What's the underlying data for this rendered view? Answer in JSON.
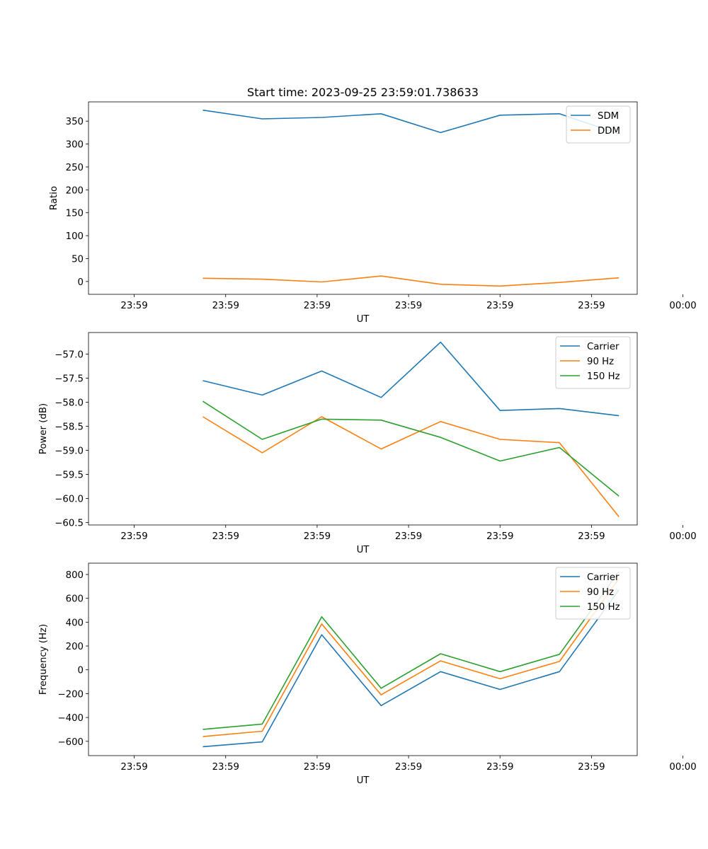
{
  "chart_data": [
    {
      "type": "line",
      "title": "Start time: 2023-09-25 23:59:01.738633",
      "xlabel": "UT",
      "ylabel": "Ratio",
      "x": [
        0.75,
        1.4,
        2.05,
        2.7,
        3.35,
        4.0,
        4.65,
        5.3
      ],
      "xlim": [
        -0.5,
        5.5
      ],
      "x_ticks": [
        0,
        1,
        2,
        3,
        4,
        5,
        6
      ],
      "x_tick_labels": [
        "23:59",
        "23:59",
        "23:59",
        "23:59",
        "23:59",
        "23:59",
        "00:00"
      ],
      "ylim": [
        -28,
        392
      ],
      "y_ticks": [
        0,
        50,
        100,
        150,
        200,
        250,
        300,
        350
      ],
      "y_tick_labels": [
        "0",
        "50",
        "100",
        "150",
        "200",
        "250",
        "300",
        "350"
      ],
      "legend": "top-right",
      "series": [
        {
          "name": "SDM",
          "color": "#1f77b4",
          "values": [
            374,
            355,
            358,
            366,
            325,
            363,
            366,
            322
          ]
        },
        {
          "name": "DDM",
          "color": "#ff7f0e",
          "values": [
            7,
            5,
            -1,
            12,
            -6,
            -10,
            -2,
            8
          ]
        }
      ]
    },
    {
      "type": "line",
      "title": "",
      "xlabel": "UT",
      "ylabel": "Power (dB)",
      "x": [
        0.75,
        1.4,
        2.05,
        2.7,
        3.35,
        4.0,
        4.65,
        5.3
      ],
      "xlim": [
        -0.5,
        5.5
      ],
      "x_ticks": [
        0,
        1,
        2,
        3,
        4,
        5,
        6
      ],
      "x_tick_labels": [
        "23:59",
        "23:59",
        "23:59",
        "23:59",
        "23:59",
        "23:59",
        "00:00"
      ],
      "ylim": [
        -60.55,
        -56.55
      ],
      "y_ticks": [
        -60.5,
        -60.0,
        -59.5,
        -59.0,
        -58.5,
        -58.0,
        -57.5,
        -57.0
      ],
      "y_tick_labels": [
        "−60.5",
        "−60.0",
        "−59.5",
        "−59.0",
        "−58.5",
        "−58.0",
        "−57.5",
        "−57.0"
      ],
      "legend": "top-right",
      "series": [
        {
          "name": "Carrier",
          "color": "#1f77b4",
          "values": [
            -57.55,
            -57.85,
            -57.35,
            -57.9,
            -56.75,
            -58.17,
            -58.13,
            -58.28
          ]
        },
        {
          "name": "90 Hz",
          "color": "#ff7f0e",
          "values": [
            -58.3,
            -59.05,
            -58.3,
            -58.97,
            -58.4,
            -58.77,
            -58.84,
            -60.38
          ]
        },
        {
          "name": "150 Hz",
          "color": "#2ca02c",
          "values": [
            -57.98,
            -58.77,
            -58.35,
            -58.37,
            -58.73,
            -59.22,
            -58.94,
            -59.95
          ]
        }
      ]
    },
    {
      "type": "line",
      "title": "",
      "xlabel": "UT",
      "ylabel": "Frequency (Hz)",
      "x": [
        0.75,
        1.4,
        2.05,
        2.7,
        3.35,
        4.0,
        4.65,
        5.3
      ],
      "xlim": [
        -0.5,
        5.5
      ],
      "x_ticks": [
        0,
        1,
        2,
        3,
        4,
        5,
        6
      ],
      "x_tick_labels": [
        "23:59",
        "23:59",
        "23:59",
        "23:59",
        "23:59",
        "23:59",
        "00:00"
      ],
      "ylim": [
        -720,
        895
      ],
      "y_ticks": [
        -600,
        -400,
        -200,
        0,
        200,
        400,
        600,
        800
      ],
      "y_tick_labels": [
        "−600",
        "−400",
        "−200",
        "0",
        "200",
        "400",
        "600",
        "800"
      ],
      "legend": "top-right",
      "series": [
        {
          "name": "Carrier",
          "color": "#1f77b4",
          "values": [
            -645,
            -605,
            295,
            -300,
            -15,
            -165,
            -15,
            670
          ]
        },
        {
          "name": "90 Hz",
          "color": "#ff7f0e",
          "values": [
            -560,
            -515,
            385,
            -210,
            75,
            -75,
            70,
            765
          ]
        },
        {
          "name": "150 Hz",
          "color": "#2ca02c",
          "values": [
            -500,
            -455,
            445,
            -155,
            135,
            -15,
            130,
            825
          ]
        }
      ]
    }
  ]
}
